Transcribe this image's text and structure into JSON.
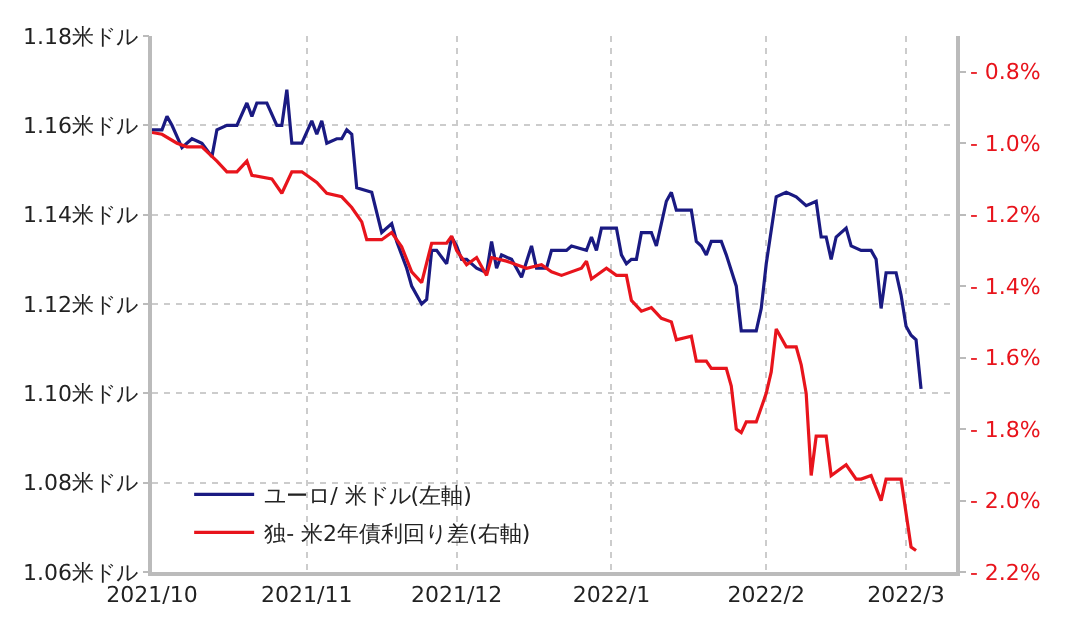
{
  "chart_data": {
    "type": "line",
    "xlim": [
      "2021-10-01",
      "2022-03-11"
    ],
    "xticks": [
      {
        "value": "2021-10-01",
        "label": "2021/10"
      },
      {
        "value": "2021-11-01",
        "label": "2021/11"
      },
      {
        "value": "2021-12-01",
        "label": "2021/12"
      },
      {
        "value": "2022-01-01",
        "label": "2022/1"
      },
      {
        "value": "2022-02-01",
        "label": "2022/2"
      },
      {
        "value": "2022-03-01",
        "label": "2022/3"
      }
    ],
    "ylim": [
      1.06,
      1.18
    ],
    "yticks": [
      {
        "value": 1.06,
        "label": "1.06米ドル"
      },
      {
        "value": 1.08,
        "label": "1.08米ドル"
      },
      {
        "value": 1.1,
        "label": "1.10米ドル"
      },
      {
        "value": 1.12,
        "label": "1.12米ドル"
      },
      {
        "value": 1.14,
        "label": "1.14米ドル"
      },
      {
        "value": 1.16,
        "label": "1.16米ドル"
      },
      {
        "value": 1.18,
        "label": "1.18米ドル"
      }
    ],
    "y2lim": [
      -2.2,
      -0.7
    ],
    "y2ticks": [
      {
        "value": -2.2,
        "label": "- 2.2%"
      },
      {
        "value": -2.0,
        "label": "- 2.0%"
      },
      {
        "value": -1.8,
        "label": "- 1.8%"
      },
      {
        "value": -1.6,
        "label": "- 1.6%"
      },
      {
        "value": -1.4,
        "label": "- 1.4%"
      },
      {
        "value": -1.2,
        "label": "- 1.2%"
      },
      {
        "value": -1.0,
        "label": "- 1.0%"
      },
      {
        "value": -0.8,
        "label": "- 0.8%"
      }
    ],
    "grid": true,
    "legend": "bottom left",
    "marker": "none",
    "line_style": "solid",
    "series": [
      {
        "name": "ユーロ/ 米ドル(左軸)",
        "color": "#1a1a82",
        "axis": "y",
        "x": [
          "2021-10-01",
          "2021-10-03",
          "2021-10-04",
          "2021-10-05",
          "2021-10-07",
          "2021-10-09",
          "2021-10-11",
          "2021-10-13",
          "2021-10-14",
          "2021-10-16",
          "2021-10-18",
          "2021-10-20",
          "2021-10-21",
          "2021-10-22",
          "2021-10-24",
          "2021-10-26",
          "2021-10-27",
          "2021-10-28",
          "2021-10-29",
          "2021-10-31",
          "2021-11-02",
          "2021-11-03",
          "2021-11-04",
          "2021-11-05",
          "2021-11-07",
          "2021-11-08",
          "2021-11-09",
          "2021-11-10",
          "2021-11-11",
          "2021-11-14",
          "2021-11-16",
          "2021-11-18",
          "2021-11-19",
          "2021-11-21",
          "2021-11-22",
          "2021-11-24",
          "2021-11-25",
          "2021-11-26",
          "2021-11-27",
          "2021-11-29",
          "2021-11-30",
          "2021-12-01",
          "2021-12-02",
          "2021-12-03",
          "2021-12-05",
          "2021-12-07",
          "2021-12-08",
          "2021-12-09",
          "2021-12-10",
          "2021-12-12",
          "2021-12-14",
          "2021-12-16",
          "2021-12-17",
          "2021-12-19",
          "2021-12-20",
          "2021-12-23",
          "2021-12-24",
          "2021-12-27",
          "2021-12-28",
          "2021-12-29",
          "2021-12-30",
          "2022-01-02",
          "2022-01-03",
          "2022-01-04",
          "2022-01-05",
          "2022-01-06",
          "2022-01-07",
          "2022-01-09",
          "2022-01-10",
          "2022-01-12",
          "2022-01-13",
          "2022-01-14",
          "2022-01-17",
          "2022-01-18",
          "2022-01-19",
          "2022-01-20",
          "2022-01-21",
          "2022-01-23",
          "2022-01-24",
          "2022-01-26",
          "2022-01-27",
          "2022-01-30",
          "2022-01-31",
          "2022-02-01",
          "2022-02-03",
          "2022-02-05",
          "2022-02-07",
          "2022-02-09",
          "2022-02-11",
          "2022-02-12",
          "2022-02-13",
          "2022-02-14",
          "2022-02-15",
          "2022-02-17",
          "2022-02-18",
          "2022-02-20",
          "2022-02-22",
          "2022-02-23",
          "2022-02-24",
          "2022-02-25",
          "2022-02-27",
          "2022-02-28",
          "2022-03-01",
          "2022-03-02",
          "2022-03-03",
          "2022-03-04"
        ],
        "values": [
          1.159,
          1.159,
          1.162,
          1.16,
          1.155,
          1.157,
          1.156,
          1.153,
          1.159,
          1.16,
          1.16,
          1.165,
          1.162,
          1.165,
          1.165,
          1.16,
          1.16,
          1.168,
          1.156,
          1.156,
          1.161,
          1.158,
          1.161,
          1.156,
          1.157,
          1.157,
          1.159,
          1.158,
          1.146,
          1.145,
          1.136,
          1.138,
          1.134,
          1.128,
          1.124,
          1.12,
          1.121,
          1.132,
          1.132,
          1.129,
          1.135,
          1.133,
          1.13,
          1.13,
          1.128,
          1.127,
          1.134,
          1.128,
          1.131,
          1.13,
          1.126,
          1.133,
          1.128,
          1.128,
          1.132,
          1.132,
          1.133,
          1.132,
          1.135,
          1.132,
          1.137,
          1.137,
          1.131,
          1.129,
          1.13,
          1.13,
          1.136,
          1.136,
          1.133,
          1.143,
          1.145,
          1.141,
          1.141,
          1.134,
          1.133,
          1.131,
          1.134,
          1.134,
          1.131,
          1.124,
          1.114,
          1.114,
          1.119,
          1.129,
          1.144,
          1.145,
          1.144,
          1.142,
          1.143,
          1.135,
          1.135,
          1.13,
          1.135,
          1.137,
          1.133,
          1.132,
          1.132,
          1.13,
          1.119,
          1.127,
          1.127,
          1.122,
          1.115,
          1.113,
          1.112,
          1.101
        ]
      },
      {
        "name": "独- 米2年債利回り差(右軸)",
        "color": "#e8141c",
        "axis": "y2",
        "x": [
          "2021-10-01",
          "2021-10-03",
          "2021-10-06",
          "2021-10-08",
          "2021-10-11",
          "2021-10-14",
          "2021-10-16",
          "2021-10-18",
          "2021-10-20",
          "2021-10-21",
          "2021-10-25",
          "2021-10-27",
          "2021-10-29",
          "2021-10-31",
          "2021-11-03",
          "2021-11-05",
          "2021-11-08",
          "2021-11-10",
          "2021-11-12",
          "2021-11-13",
          "2021-11-16",
          "2021-11-18",
          "2021-11-20",
          "2021-11-22",
          "2021-11-24",
          "2021-11-26",
          "2021-11-29",
          "2021-11-30",
          "2021-12-01",
          "2021-12-02",
          "2021-12-03",
          "2021-12-05",
          "2021-12-07",
          "2021-12-08",
          "2021-12-11",
          "2021-12-13",
          "2021-12-15",
          "2021-12-18",
          "2021-12-20",
          "2021-12-22",
          "2021-12-26",
          "2021-12-27",
          "2021-12-28",
          "2021-12-31",
          "2022-01-02",
          "2022-01-04",
          "2022-01-05",
          "2022-01-07",
          "2022-01-09",
          "2022-01-11",
          "2022-01-13",
          "2022-01-14",
          "2022-01-17",
          "2022-01-18",
          "2022-01-20",
          "2022-01-21",
          "2022-01-24",
          "2022-01-25",
          "2022-01-26",
          "2022-01-27",
          "2022-01-28",
          "2022-01-30",
          "2022-02-01",
          "2022-02-02",
          "2022-02-03",
          "2022-02-05",
          "2022-02-07",
          "2022-02-08",
          "2022-02-09",
          "2022-02-10",
          "2022-02-11",
          "2022-02-13",
          "2022-02-14",
          "2022-02-17",
          "2022-02-19",
          "2022-02-20",
          "2022-02-22",
          "2022-02-24",
          "2022-02-25",
          "2022-02-28",
          "2022-03-02",
          "2022-03-03"
        ],
        "values": [
          -0.97,
          -0.975,
          -1.0,
          -1.01,
          -1.01,
          -1.05,
          -1.08,
          -1.08,
          -1.05,
          -1.09,
          -1.1,
          -1.14,
          -1.08,
          -1.08,
          -1.11,
          -1.14,
          -1.15,
          -1.18,
          -1.22,
          -1.27,
          -1.27,
          -1.25,
          -1.29,
          -1.36,
          -1.39,
          -1.28,
          -1.28,
          -1.26,
          -1.3,
          -1.32,
          -1.34,
          -1.32,
          -1.37,
          -1.32,
          -1.33,
          -1.34,
          -1.35,
          -1.34,
          -1.36,
          -1.37,
          -1.35,
          -1.33,
          -1.38,
          -1.35,
          -1.37,
          -1.37,
          -1.44,
          -1.47,
          -1.46,
          -1.49,
          -1.5,
          -1.55,
          -1.54,
          -1.61,
          -1.61,
          -1.63,
          -1.63,
          -1.68,
          -1.8,
          -1.81,
          -1.78,
          -1.78,
          -1.7,
          -1.64,
          -1.52,
          -1.57,
          -1.57,
          -1.62,
          -1.7,
          -1.93,
          -1.82,
          -1.82,
          -1.93,
          -1.9,
          -1.94,
          -1.94,
          -1.93,
          -2.0,
          -1.94,
          -1.94,
          -2.13,
          -2.14
        ]
      }
    ]
  }
}
